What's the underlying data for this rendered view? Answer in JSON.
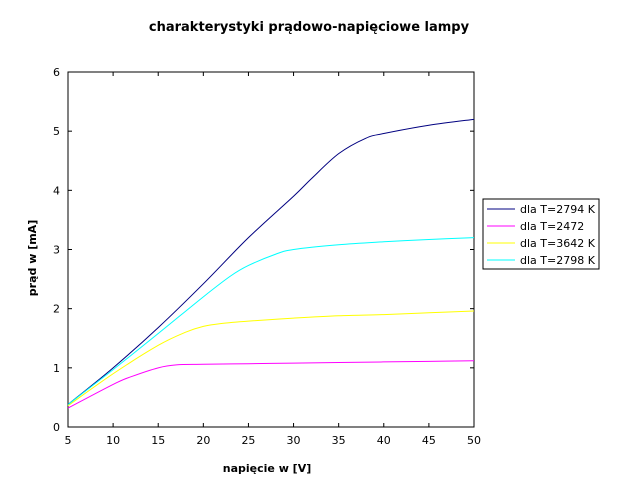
{
  "chart_data": {
    "type": "line",
    "title": "charakterystyki prądowo-napięciowe lampy",
    "xlabel": "napięcie w [V]",
    "ylabel": "prąd  w  [mA]",
    "xlim": [
      5,
      50
    ],
    "ylim": [
      0,
      6
    ],
    "xticks": [
      "5",
      "10",
      "15",
      "20",
      "25",
      "30",
      "35",
      "40",
      "45",
      "50"
    ],
    "yticks": [
      "0",
      "1",
      "2",
      "3",
      "4",
      "5",
      "6"
    ],
    "grid": false,
    "legend_position": "right",
    "series": [
      {
        "name": "dla T=2794 K",
        "color": "#000080",
        "x": [
          5,
          10,
          15,
          20,
          25,
          30,
          32,
          35,
          38,
          40,
          45,
          50
        ],
        "y": [
          0.38,
          1.0,
          1.68,
          2.42,
          3.2,
          3.9,
          4.2,
          4.62,
          4.88,
          4.96,
          5.1,
          5.2
        ]
      },
      {
        "name": "dla T=2472",
        "color": "#ff00ff",
        "x": [
          5,
          10,
          12,
          15,
          17,
          20,
          25,
          30,
          35,
          40,
          45,
          50
        ],
        "y": [
          0.32,
          0.72,
          0.85,
          1.0,
          1.05,
          1.06,
          1.07,
          1.08,
          1.09,
          1.1,
          1.11,
          1.12
        ]
      },
      {
        "name": "dla T=3642 K",
        "color": "#ffff00",
        "x": [
          5,
          10,
          15,
          18,
          20,
          22,
          25,
          30,
          35,
          40,
          45,
          50
        ],
        "y": [
          0.36,
          0.9,
          1.38,
          1.6,
          1.7,
          1.75,
          1.79,
          1.84,
          1.88,
          1.9,
          1.93,
          1.96
        ]
      },
      {
        "name": "dla T=2798 K",
        "color": "#00ffff",
        "x": [
          5,
          10,
          15,
          20,
          23,
          25,
          28,
          30,
          35,
          40,
          45,
          50
        ],
        "y": [
          0.38,
          0.97,
          1.58,
          2.2,
          2.55,
          2.73,
          2.92,
          3.0,
          3.08,
          3.13,
          3.17,
          3.2
        ]
      }
    ]
  }
}
